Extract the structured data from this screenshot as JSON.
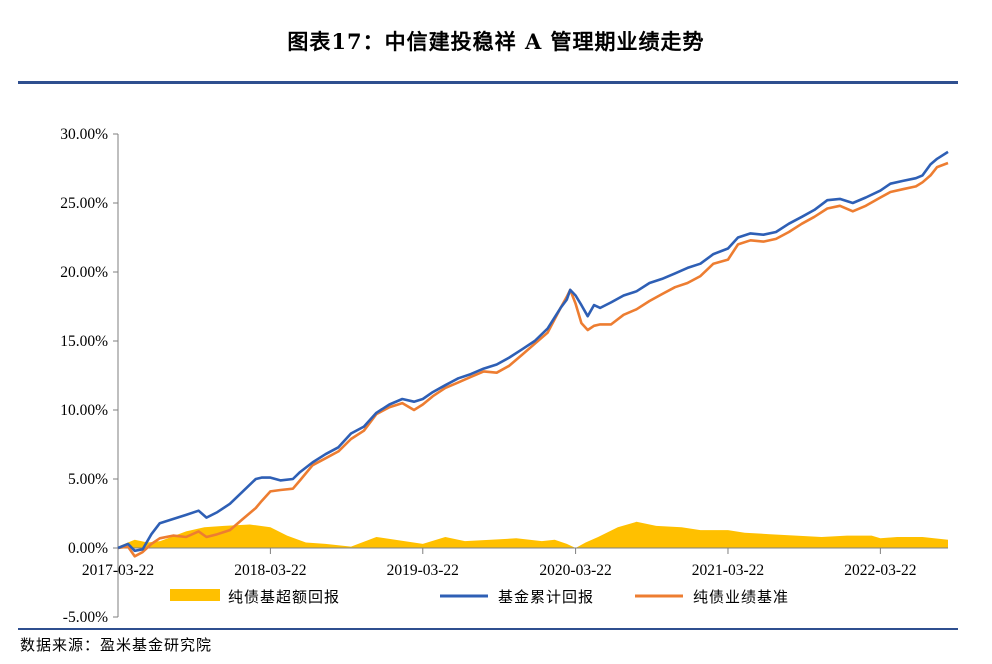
{
  "header": {
    "title": "图表17：中信建投稳祥 A 管理期业绩走势"
  },
  "footer": {
    "source": "数据来源：盈米基金研究院"
  },
  "chart_data": {
    "type": "line",
    "title": "图表17：中信建投稳祥 A 管理期业绩走势",
    "y_ticks": [
      "30.00%",
      "25.00%",
      "20.00%",
      "15.00%",
      "10.00%",
      "5.00%",
      "0.00%",
      "-5.00%"
    ],
    "x_ticks": [
      "2017-03-22",
      "2018-03-22",
      "2019-03-22",
      "2020-03-22",
      "2021-03-22",
      "2022-03-22"
    ],
    "ylim": [
      -5,
      30
    ],
    "x_range": [
      "2017-03-22",
      "2022-08-31"
    ],
    "grid": false,
    "legend_position": "bottom",
    "colors": {
      "area": "#ffc000",
      "cumulative": "#2e5fb5",
      "benchmark": "#ed7d31"
    },
    "series": [
      {
        "name": "纯债基超额回报",
        "kind": "area",
        "x": [
          "2017-03-22",
          "2017-05-01",
          "2017-06-01",
          "2017-07-01",
          "2017-09-01",
          "2017-10-15",
          "2017-12-01",
          "2018-02-01",
          "2018-03-22",
          "2018-05-01",
          "2018-06-15",
          "2018-08-01",
          "2018-10-01",
          "2018-12-01",
          "2019-01-15",
          "2019-03-22",
          "2019-05-15",
          "2019-07-01",
          "2019-09-01",
          "2019-11-01",
          "2020-01-01",
          "2020-02-01",
          "2020-03-01",
          "2020-03-22",
          "2020-04-15",
          "2020-05-15",
          "2020-07-01",
          "2020-08-15",
          "2020-10-01",
          "2020-12-01",
          "2021-01-15",
          "2021-03-22",
          "2021-05-01",
          "2021-07-01",
          "2021-09-01",
          "2021-11-01",
          "2022-01-01",
          "2022-03-01",
          "2022-03-22",
          "2022-05-01",
          "2022-07-01",
          "2022-08-31"
        ],
        "values": [
          0.1,
          0.6,
          0.4,
          0.5,
          1.2,
          1.5,
          1.6,
          1.7,
          1.5,
          0.9,
          0.4,
          0.3,
          0.1,
          0.8,
          0.6,
          0.3,
          0.8,
          0.5,
          0.6,
          0.7,
          0.5,
          0.6,
          0.3,
          0.0,
          0.4,
          0.8,
          1.5,
          1.9,
          1.6,
          1.5,
          1.3,
          1.3,
          1.1,
          1.0,
          0.9,
          0.8,
          0.9,
          0.9,
          0.7,
          0.8,
          0.8,
          0.6
        ]
      },
      {
        "name": "基金累计回报",
        "kind": "line",
        "x": [
          "2017-03-22",
          "2017-04-15",
          "2017-05-01",
          "2017-05-20",
          "2017-06-10",
          "2017-06-30",
          "2017-08-01",
          "2017-09-01",
          "2017-10-01",
          "2017-10-20",
          "2017-11-15",
          "2017-12-15",
          "2018-01-15",
          "2018-02-15",
          "2018-03-01",
          "2018-03-22",
          "2018-04-15",
          "2018-05-15",
          "2018-06-01",
          "2018-07-01",
          "2018-08-01",
          "2018-09-01",
          "2018-10-01",
          "2018-11-01",
          "2018-12-01",
          "2019-01-01",
          "2019-02-01",
          "2019-03-01",
          "2019-03-22",
          "2019-04-15",
          "2019-05-15",
          "2019-06-15",
          "2019-07-15",
          "2019-08-15",
          "2019-09-15",
          "2019-10-15",
          "2019-11-15",
          "2019-12-15",
          "2020-01-15",
          "2020-02-15",
          "2020-03-01",
          "2020-03-09",
          "2020-03-22",
          "2020-04-05",
          "2020-04-20",
          "2020-05-05",
          "2020-05-20",
          "2020-06-15",
          "2020-07-15",
          "2020-08-15",
          "2020-09-15",
          "2020-10-15",
          "2020-11-15",
          "2020-12-15",
          "2021-01-15",
          "2021-02-15",
          "2021-03-22",
          "2021-04-15",
          "2021-05-15",
          "2021-06-15",
          "2021-07-15",
          "2021-08-15",
          "2021-09-15",
          "2021-10-15",
          "2021-11-15",
          "2021-12-15",
          "2022-01-15",
          "2022-02-15",
          "2022-03-22",
          "2022-04-15",
          "2022-05-15",
          "2022-06-15",
          "2022-07-01",
          "2022-07-20",
          "2022-08-05",
          "2022-08-31"
        ],
        "values": [
          0.0,
          0.3,
          -0.2,
          -0.1,
          1.0,
          1.8,
          2.1,
          2.4,
          2.7,
          2.2,
          2.6,
          3.2,
          4.1,
          5.0,
          5.1,
          5.1,
          4.9,
          5.0,
          5.5,
          6.2,
          6.8,
          7.3,
          8.3,
          8.8,
          9.8,
          10.4,
          10.8,
          10.6,
          10.8,
          11.3,
          11.8,
          12.3,
          12.6,
          13.0,
          13.3,
          13.8,
          14.4,
          15.0,
          15.9,
          17.4,
          18.0,
          18.7,
          18.3,
          17.6,
          16.8,
          17.6,
          17.4,
          17.8,
          18.3,
          18.6,
          19.2,
          19.5,
          19.9,
          20.3,
          20.6,
          21.3,
          21.7,
          22.5,
          22.8,
          22.7,
          22.9,
          23.5,
          24.0,
          24.5,
          25.2,
          25.3,
          25.0,
          25.4,
          25.9,
          26.4,
          26.6,
          26.8,
          27.0,
          27.8,
          28.2,
          28.7
        ]
      },
      {
        "name": "纯债业绩基准",
        "kind": "line",
        "x": [
          "2017-03-22",
          "2017-04-15",
          "2017-05-01",
          "2017-05-20",
          "2017-06-10",
          "2017-06-30",
          "2017-08-01",
          "2017-09-01",
          "2017-10-01",
          "2017-10-20",
          "2017-11-15",
          "2017-12-15",
          "2018-01-15",
          "2018-02-15",
          "2018-03-01",
          "2018-03-22",
          "2018-04-15",
          "2018-05-15",
          "2018-06-01",
          "2018-07-01",
          "2018-08-01",
          "2018-09-01",
          "2018-10-01",
          "2018-11-01",
          "2018-12-01",
          "2019-01-01",
          "2019-02-01",
          "2019-03-01",
          "2019-03-22",
          "2019-04-15",
          "2019-05-15",
          "2019-06-15",
          "2019-07-15",
          "2019-08-15",
          "2019-09-15",
          "2019-10-15",
          "2019-11-15",
          "2019-12-15",
          "2020-01-15",
          "2020-02-15",
          "2020-03-01",
          "2020-03-09",
          "2020-03-22",
          "2020-04-05",
          "2020-04-20",
          "2020-05-05",
          "2020-05-20",
          "2020-06-15",
          "2020-07-15",
          "2020-08-15",
          "2020-09-15",
          "2020-10-15",
          "2020-11-15",
          "2020-12-15",
          "2021-01-15",
          "2021-02-15",
          "2021-03-22",
          "2021-04-15",
          "2021-05-15",
          "2021-06-15",
          "2021-07-15",
          "2021-08-15",
          "2021-09-15",
          "2021-10-15",
          "2021-11-15",
          "2021-12-15",
          "2022-01-15",
          "2022-02-15",
          "2022-03-22",
          "2022-04-15",
          "2022-05-15",
          "2022-06-15",
          "2022-07-01",
          "2022-07-20",
          "2022-08-05",
          "2022-08-31"
        ],
        "values": [
          0.0,
          0.1,
          -0.6,
          -0.3,
          0.3,
          0.7,
          0.9,
          0.8,
          1.2,
          0.8,
          1.0,
          1.3,
          2.1,
          2.9,
          3.4,
          4.1,
          4.2,
          4.3,
          4.9,
          6.0,
          6.5,
          7.0,
          7.9,
          8.5,
          9.7,
          10.2,
          10.5,
          10.0,
          10.4,
          11.0,
          11.6,
          12.0,
          12.4,
          12.8,
          12.7,
          13.2,
          14.0,
          14.8,
          15.6,
          17.4,
          18.2,
          18.7,
          17.7,
          16.3,
          15.8,
          16.1,
          16.2,
          16.2,
          16.9,
          17.3,
          17.9,
          18.4,
          18.9,
          19.2,
          19.7,
          20.6,
          20.9,
          22.0,
          22.3,
          22.2,
          22.4,
          22.9,
          23.5,
          24.0,
          24.6,
          24.8,
          24.4,
          24.8,
          25.4,
          25.8,
          26.0,
          26.2,
          26.5,
          27.0,
          27.6,
          27.9
        ]
      }
    ]
  }
}
